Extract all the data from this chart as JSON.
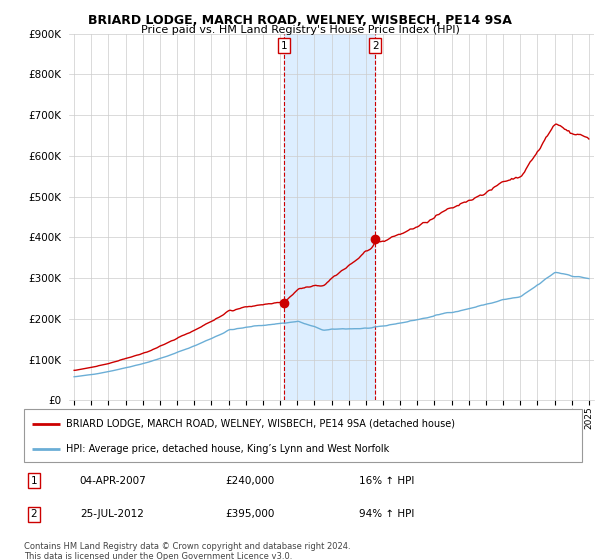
{
  "title": "BRIARD LODGE, MARCH ROAD, WELNEY, WISBECH, PE14 9SA",
  "subtitle": "Price paid vs. HM Land Registry's House Price Index (HPI)",
  "legend_line1": "BRIARD LODGE, MARCH ROAD, WELNEY, WISBECH, PE14 9SA (detached house)",
  "legend_line2": "HPI: Average price, detached house, King’s Lynn and West Norfolk",
  "annotation1_date": "04-APR-2007",
  "annotation1_price": "£240,000",
  "annotation1_hpi": "16% ↑ HPI",
  "annotation2_date": "25-JUL-2012",
  "annotation2_price": "£395,000",
  "annotation2_hpi": "94% ↑ HPI",
  "footer": "Contains HM Land Registry data © Crown copyright and database right 2024.\nThis data is licensed under the Open Government Licence v3.0.",
  "sale1_x": 2007.25,
  "sale1_y": 240000,
  "sale2_x": 2012.55,
  "sale2_y": 395000,
  "ylim": [
    0,
    900000
  ],
  "xlim_start": 1994.7,
  "xlim_end": 2025.3,
  "red_color": "#cc0000",
  "blue_color": "#6baed6",
  "shade_color": "#ddeeff",
  "background_color": "#ffffff",
  "grid_color": "#cccccc"
}
